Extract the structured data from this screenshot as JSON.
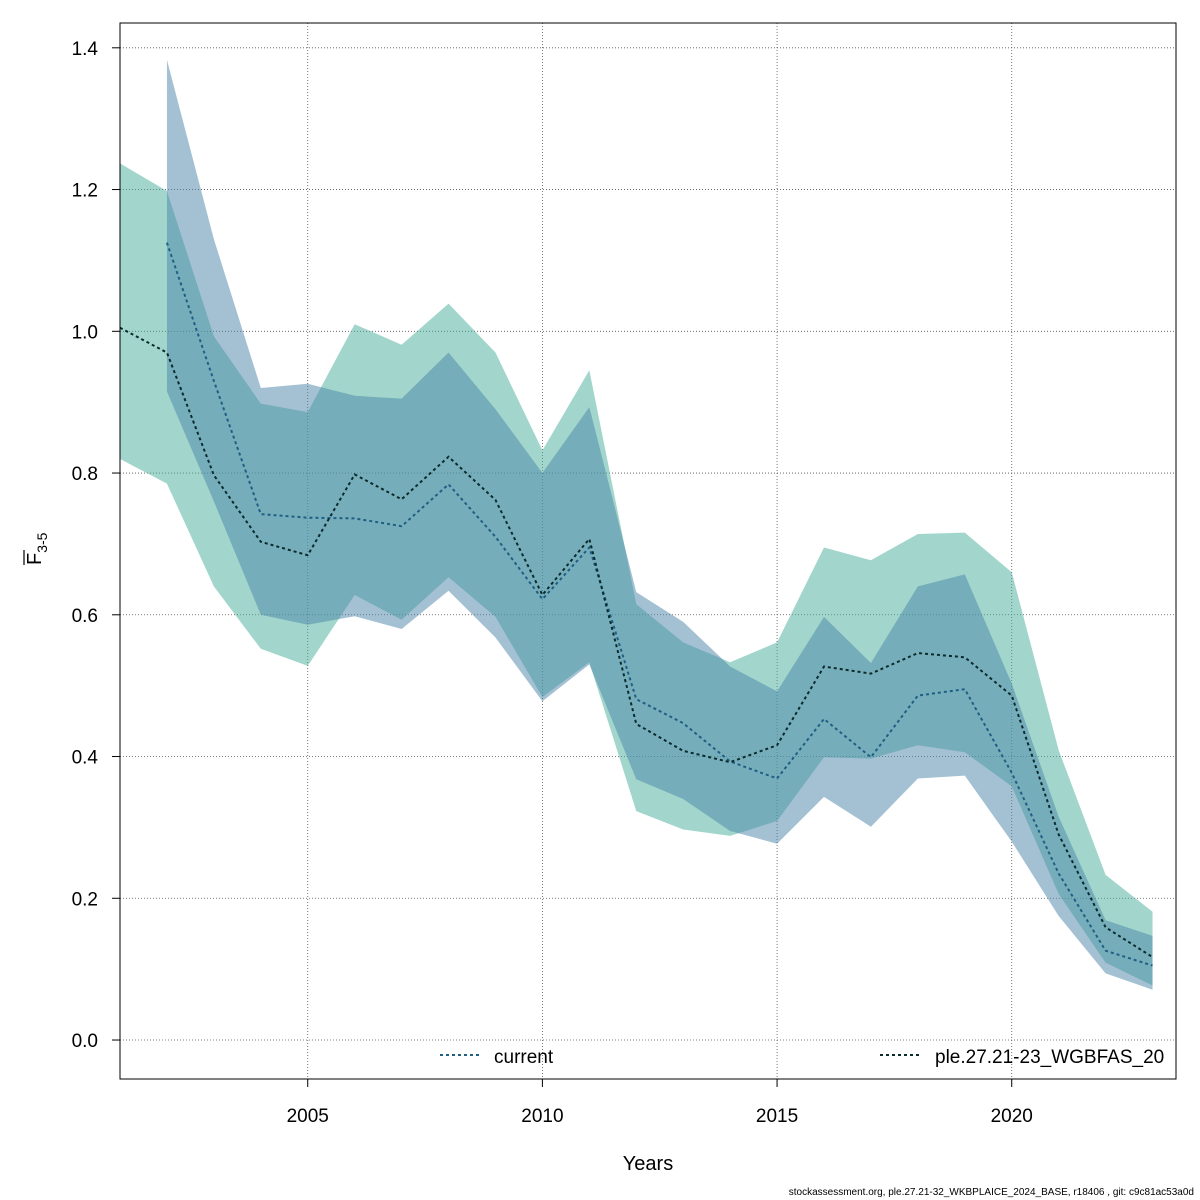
{
  "chart_data": {
    "type": "area",
    "xlabel": "Years",
    "ylabel_main": "F",
    "ylabel_sub": "3-5",
    "xlim": [
      2001,
      2023.5
    ],
    "ylim": [
      -0.055,
      1.435
    ],
    "x_ticks": [
      2005,
      2010,
      2015,
      2020
    ],
    "y_ticks": [
      0.0,
      0.2,
      0.4,
      0.6,
      0.8,
      1.0,
      1.2,
      1.4
    ],
    "y_tick_labels": [
      "0.0",
      "0.2",
      "0.4",
      "0.6",
      "0.8",
      "1.0",
      "1.2",
      "1.4"
    ],
    "grid": true,
    "legend_position": "bottom",
    "series": [
      {
        "name": "current",
        "line_color": "#1f5f84",
        "band_color": "#4a84a8",
        "band_opacity": 0.5,
        "x": [
          2002,
          2003,
          2004,
          2005,
          2006,
          2007,
          2008,
          2009,
          2010,
          2011,
          2012,
          2013,
          2014,
          2015,
          2016,
          2017,
          2018,
          2019,
          2020,
          2021,
          2022,
          2023
        ],
        "values": [
          1.125,
          0.93,
          0.742,
          0.737,
          0.736,
          0.725,
          0.784,
          0.71,
          0.622,
          0.695,
          0.481,
          0.447,
          0.393,
          0.369,
          0.453,
          0.399,
          0.486,
          0.495,
          0.377,
          0.235,
          0.126,
          0.105
        ],
        "lower": [
          0.915,
          0.76,
          0.6,
          0.586,
          0.598,
          0.58,
          0.634,
          0.568,
          0.478,
          0.53,
          0.368,
          0.34,
          0.295,
          0.277,
          0.343,
          0.301,
          0.369,
          0.373,
          0.28,
          0.175,
          0.094,
          0.071
        ],
        "upper": [
          1.383,
          1.13,
          0.92,
          0.926,
          0.909,
          0.905,
          0.97,
          0.89,
          0.8,
          0.893,
          0.632,
          0.59,
          0.527,
          0.492,
          0.597,
          0.532,
          0.64,
          0.657,
          0.503,
          0.315,
          0.169,
          0.147
        ]
      },
      {
        "name": "ple.27.21-23_WGBFAS_20",
        "line_color": "#0a2b2b",
        "band_color": "#45ad9a",
        "band_opacity": 0.5,
        "x": [
          2001,
          2002,
          2003,
          2004,
          2005,
          2006,
          2007,
          2008,
          2009,
          2010,
          2011,
          2012,
          2013,
          2014,
          2015,
          2016,
          2017,
          2018,
          2019,
          2020,
          2021,
          2022,
          2023
        ],
        "values": [
          1.005,
          0.97,
          0.797,
          0.703,
          0.684,
          0.798,
          0.763,
          0.823,
          0.762,
          0.628,
          0.707,
          0.446,
          0.408,
          0.392,
          0.416,
          0.527,
          0.517,
          0.546,
          0.54,
          0.486,
          0.29,
          0.159,
          0.117
        ],
        "lower": [
          0.82,
          0.785,
          0.64,
          0.552,
          0.528,
          0.628,
          0.593,
          0.653,
          0.597,
          0.484,
          0.533,
          0.323,
          0.297,
          0.288,
          0.309,
          0.399,
          0.397,
          0.416,
          0.406,
          0.358,
          0.206,
          0.109,
          0.077
        ],
        "upper": [
          1.237,
          1.198,
          0.993,
          0.898,
          0.886,
          1.01,
          0.981,
          1.039,
          0.97,
          0.832,
          0.945,
          0.615,
          0.561,
          0.533,
          0.561,
          0.695,
          0.677,
          0.714,
          0.716,
          0.66,
          0.409,
          0.233,
          0.181
        ]
      }
    ]
  },
  "footer": "stockassessment.org, ple.27.21-32_WKBPLAICE_2024_BASE, r18406 , git: c9c81ac53a0d"
}
